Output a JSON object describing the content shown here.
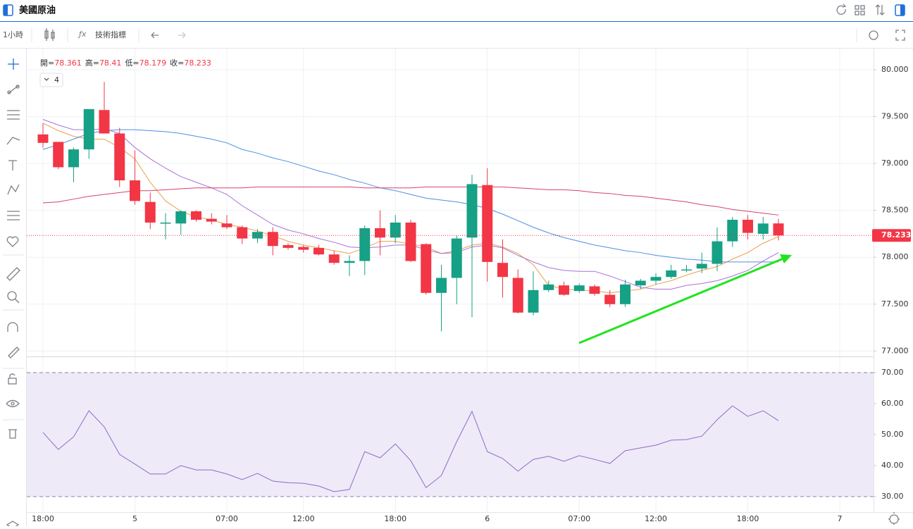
{
  "header": {
    "title": "美國原油"
  },
  "toolbar": {
    "interval": "1小時",
    "indicators": "技術指標"
  },
  "legend": {
    "labels": [
      "開=",
      "高=",
      "低=",
      "收="
    ],
    "indicator_count": 4
  },
  "chart_data": [
    {
      "type": "candlestick",
      "categories": [
        "18:00",
        null,
        null,
        null,
        null,
        null,
        "5",
        null,
        null,
        null,
        null,
        null,
        "07:00",
        null,
        null,
        null,
        null,
        "12:00",
        null,
        null,
        null,
        null,
        null,
        "18:00",
        null,
        null,
        null,
        null,
        null,
        "6",
        null,
        null,
        null,
        null,
        null,
        "07:00",
        null,
        null,
        null,
        null,
        "12:00",
        null,
        null,
        null,
        null,
        null,
        "18:00",
        null,
        null,
        null,
        null,
        null,
        "7"
      ],
      "open": [
        79.31,
        79.23,
        78.96,
        79.15,
        79.57,
        79.32,
        78.82,
        78.59,
        78.36,
        78.36,
        78.49,
        78.41,
        78.36,
        78.32,
        78.2,
        78.27,
        78.13,
        78.11,
        78.1,
        78.03,
        77.94,
        77.96,
        78.31,
        78.21,
        78.37,
        78.14,
        77.62,
        77.78,
        78.21,
        78.77,
        77.94,
        77.78,
        77.41,
        77.65,
        77.7,
        77.64,
        77.69,
        77.6,
        77.5,
        77.7,
        77.75,
        77.79,
        77.86,
        77.88,
        77.93,
        78.17,
        78.4,
        78.25,
        78.361,
        null,
        null,
        null,
        null
      ],
      "high": [
        79.43,
        79.23,
        79.17,
        79.58,
        79.87,
        79.38,
        79.14,
        78.69,
        78.47,
        78.5,
        78.5,
        78.47,
        78.45,
        78.34,
        78.3,
        78.32,
        78.15,
        78.13,
        78.13,
        78.07,
        78.02,
        78.34,
        78.5,
        78.45,
        78.4,
        78.15,
        77.92,
        78.23,
        78.88,
        78.95,
        78.19,
        77.87,
        77.85,
        77.75,
        77.74,
        77.72,
        77.71,
        77.65,
        77.76,
        77.77,
        77.83,
        77.92,
        77.92,
        78.05,
        78.32,
        78.43,
        78.45,
        78.43,
        78.41,
        null,
        null,
        null,
        null
      ],
      "low": [
        79.17,
        78.94,
        78.8,
        79.05,
        79.32,
        78.75,
        78.56,
        78.3,
        78.19,
        78.24,
        78.38,
        78.35,
        78.3,
        78.14,
        78.15,
        78.02,
        78.08,
        78.05,
        78.02,
        77.92,
        77.8,
        77.81,
        78.02,
        78.15,
        77.95,
        77.6,
        77.21,
        77.5,
        77.36,
        77.74,
        77.57,
        77.4,
        77.38,
        77.63,
        77.59,
        77.62,
        77.59,
        77.47,
        77.47,
        77.66,
        77.71,
        77.77,
        77.84,
        77.83,
        77.85,
        78.11,
        78.19,
        78.19,
        78.179,
        null,
        null,
        null,
        null
      ],
      "close": [
        79.22,
        78.96,
        79.15,
        79.58,
        79.32,
        78.82,
        78.6,
        78.37,
        78.37,
        78.49,
        78.4,
        78.38,
        78.32,
        78.2,
        78.27,
        78.12,
        78.1,
        78.08,
        78.03,
        77.94,
        77.96,
        78.31,
        78.21,
        78.37,
        77.96,
        77.62,
        77.78,
        78.2,
        78.78,
        77.95,
        77.79,
        77.41,
        77.65,
        77.71,
        77.6,
        77.7,
        77.61,
        77.5,
        77.71,
        77.75,
        77.79,
        77.86,
        77.87,
        77.93,
        78.17,
        78.4,
        78.26,
        78.36,
        78.233,
        null,
        null,
        null,
        null
      ],
      "up_color": "#16a085",
      "down_color": "#f23645",
      "series": [
        {
          "color": "#e8a04c",
          "values": [
            79.43,
            79.35,
            79.29,
            79.26,
            79.26,
            79.17,
            79.05,
            78.8,
            78.6,
            78.49,
            78.43,
            78.4,
            78.35,
            78.32,
            78.28,
            78.23,
            78.17,
            78.13,
            78.1,
            78.07,
            78.04,
            78.1,
            78.17,
            78.17,
            78.14,
            78.11,
            78.04,
            78.07,
            78.13,
            78.15,
            78.11,
            78.04,
            77.92,
            77.7,
            77.66,
            77.65,
            77.64,
            77.62,
            77.64,
            77.66,
            77.71,
            77.75,
            77.81,
            77.86,
            77.9,
            77.98,
            78.05,
            78.15,
            78.22,
            null,
            null,
            null,
            null
          ]
        },
        {
          "color": "#a970d8",
          "values": [
            79.47,
            79.41,
            79.36,
            79.36,
            79.37,
            79.32,
            79.17,
            79.05,
            78.95,
            78.86,
            78.8,
            78.74,
            78.67,
            78.55,
            78.45,
            78.35,
            78.29,
            78.25,
            78.2,
            78.16,
            78.11,
            78.1,
            78.11,
            78.13,
            78.13,
            78.08,
            78.04,
            78.05,
            78.11,
            78.13,
            78.1,
            78.02,
            77.95,
            77.89,
            77.86,
            77.85,
            77.85,
            77.8,
            77.74,
            77.68,
            77.66,
            77.66,
            77.7,
            77.72,
            77.75,
            77.8,
            77.86,
            77.96,
            78.05,
            null,
            null,
            null,
            null
          ]
        },
        {
          "color": "#4a90e2",
          "values": [
            79.15,
            79.2,
            79.26,
            79.32,
            79.35,
            79.36,
            79.36,
            79.35,
            79.34,
            79.32,
            79.29,
            79.26,
            79.22,
            79.15,
            79.11,
            79.06,
            79.02,
            78.97,
            78.92,
            78.88,
            78.83,
            78.79,
            78.74,
            78.71,
            78.67,
            78.63,
            78.61,
            78.59,
            78.56,
            78.52,
            78.46,
            78.39,
            78.32,
            78.26,
            78.21,
            78.17,
            78.13,
            78.1,
            78.07,
            78.05,
            78.02,
            78.0,
            77.98,
            77.97,
            77.95,
            77.95,
            77.95,
            77.95,
            77.95,
            null,
            null,
            null,
            null
          ]
        },
        {
          "color": "#d6416b",
          "values": [
            78.58,
            78.59,
            78.62,
            78.65,
            78.67,
            78.69,
            78.71,
            78.71,
            78.72,
            78.73,
            78.74,
            78.74,
            78.74,
            78.74,
            78.75,
            78.75,
            78.75,
            78.75,
            78.75,
            78.75,
            78.75,
            78.74,
            78.74,
            78.74,
            78.74,
            78.75,
            78.75,
            78.75,
            78.75,
            78.75,
            78.75,
            78.74,
            78.73,
            78.72,
            78.72,
            78.71,
            78.69,
            78.68,
            78.66,
            78.65,
            78.63,
            78.61,
            78.59,
            78.56,
            78.54,
            78.51,
            78.49,
            78.47,
            78.45,
            null,
            null,
            null,
            null
          ]
        }
      ],
      "ylim": [
        76.95,
        80.18
      ],
      "yticks": [
        {
          "value": 77,
          "label": "77.000"
        },
        {
          "value": 77.5,
          "label": "77.500"
        },
        {
          "value": 78,
          "label": "78.000"
        },
        {
          "value": 78.5,
          "label": "78.500"
        },
        {
          "value": 79,
          "label": "79.000"
        },
        {
          "value": 79.5,
          "label": "79.500"
        },
        {
          "value": 80,
          "label": "80.000"
        }
      ],
      "grid": true
    },
    {
      "type": "line",
      "series": [
        {
          "color": "#8c6cc8",
          "values": [
            50.7,
            45.2,
            49.3,
            57.7,
            52.5,
            43.6,
            40.5,
            37.3,
            37.3,
            40.0,
            38.6,
            38.6,
            37.3,
            35.5,
            37.5,
            35.0,
            34.5,
            34.3,
            33.4,
            31.6,
            32.3,
            44.5,
            42.5,
            47.0,
            41.6,
            32.9,
            36.8,
            47.7,
            57.5,
            44.5,
            42.3,
            38.2,
            42.0,
            43.0,
            41.4,
            43.2,
            42.0,
            40.7,
            44.8,
            45.7,
            46.6,
            48.2,
            48.4,
            49.5,
            54.8,
            59.3,
            55.9,
            57.7,
            54.5,
            null,
            null,
            null,
            null
          ]
        }
      ],
      "band": [
        30,
        70
      ],
      "band_color": "#efeaf8",
      "ylim": [
        25,
        75
      ],
      "yticks": [
        {
          "value": 30,
          "label": "30.00"
        },
        {
          "value": 40,
          "label": "40.00"
        },
        {
          "value": 50,
          "label": "50.00"
        },
        {
          "value": 60,
          "label": "60.00"
        },
        {
          "value": 70,
          "label": "70.00"
        }
      ],
      "grid": true
    }
  ]
}
